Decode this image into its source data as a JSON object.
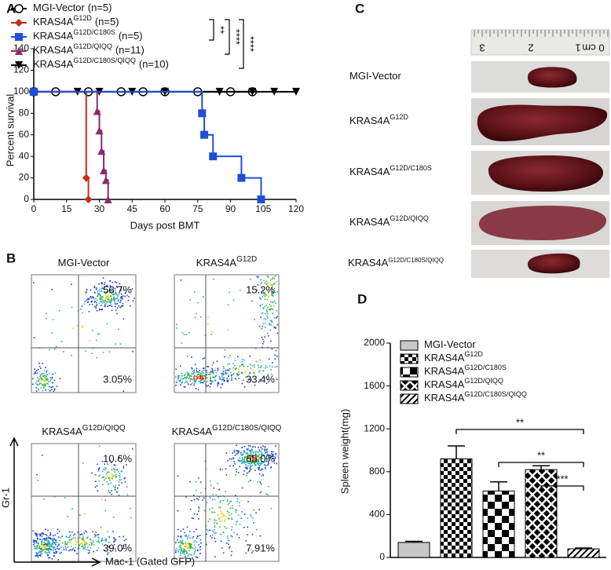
{
  "panel_letters": [
    "A",
    "B",
    "C",
    "D"
  ],
  "chart_data": [
    {
      "type": "survival",
      "xlabel": "Days post BMT",
      "ylabel": "Percent survival",
      "xlim": [
        0,
        120
      ],
      "xticks": [
        0,
        15,
        30,
        45,
        60,
        75,
        90,
        105,
        120
      ],
      "ylim": [
        0,
        140
      ],
      "yticks": [
        0,
        20,
        40,
        60,
        80,
        100,
        120,
        140
      ],
      "series": [
        {
          "name": "MGI-Vector",
          "suffix": "(n=5)",
          "color": "#000000",
          "marker": "circle-open",
          "x": [
            0,
            10,
            25,
            40,
            50,
            60,
            75,
            90,
            100
          ],
          "values": [
            100,
            100,
            100,
            100,
            100,
            100,
            100,
            100,
            100
          ]
        },
        {
          "name": "KRAS4A",
          "sup": "G12D",
          "suffix": "(n=5)",
          "color": "#cc2a1e",
          "marker": "diamond",
          "x": [
            0,
            24,
            25
          ],
          "values": [
            100,
            20,
            0
          ]
        },
        {
          "name": "KRAS4A",
          "sup": "G12D/C180S",
          "suffix": "(n=5)",
          "color": "#1f4fd6",
          "marker": "square",
          "x": [
            0,
            77,
            78,
            82,
            95,
            104
          ],
          "values": [
            100,
            80,
            60,
            40,
            20,
            0
          ]
        },
        {
          "name": "KRAS4A",
          "sup": "G12D/QIQQ",
          "suffix": "(n=11)",
          "color": "#8b2a6b",
          "marker": "triangle-up",
          "x": [
            0,
            29,
            30,
            31,
            32,
            33,
            34
          ],
          "values": [
            100,
            82,
            64,
            45,
            27,
            18,
            0
          ]
        },
        {
          "name": "KRAS4A",
          "sup": "G12D/C180S/QIQQ",
          "suffix": "(n=10)",
          "color": "#000000",
          "marker": "triangle-down",
          "x": [
            0,
            20,
            30,
            45,
            60,
            85,
            100,
            110,
            120
          ],
          "values": [
            100,
            100,
            100,
            100,
            100,
            100,
            100,
            100,
            100
          ]
        }
      ],
      "significance": [
        "**",
        "****",
        "****"
      ]
    },
    {
      "type": "bar",
      "ylabel": "Spleen weight(mg)",
      "categories": [
        null
      ],
      "ylim": [
        0,
        2000
      ],
      "yticks": [
        0,
        400,
        800,
        1200,
        1600,
        2000
      ],
      "series": [
        {
          "name": "MGI-Vector",
          "pattern": "solid",
          "color": "#c8c8c8",
          "values": [
            140
          ],
          "errors": [
            10
          ]
        },
        {
          "name": "KRAS4A",
          "sup": "G12D",
          "pattern": "checker-small",
          "color": "#000000",
          "values": [
            920
          ],
          "errors": [
            120
          ]
        },
        {
          "name": "KRAS4A",
          "sup": "G12D/C180S",
          "pattern": "checker-large",
          "color": "#000000",
          "values": [
            620
          ],
          "errors": [
            85
          ]
        },
        {
          "name": "KRAS4A",
          "sup": "G12D/QIQQ",
          "pattern": "crosshatch",
          "color": "#000000",
          "values": [
            820
          ],
          "errors": [
            35
          ]
        },
        {
          "name": "KRAS4A",
          "sup": "G12D/C180S/QIQQ",
          "pattern": "diagonal",
          "color": "#000000",
          "values": [
            80
          ],
          "errors": [
            8
          ]
        }
      ],
      "significance": [
        "**",
        "**",
        "***"
      ]
    }
  ],
  "flow": {
    "y_axis": "Gr-1",
    "x_axis": "Mac-1 (Gated GFP)",
    "plots": [
      {
        "name": "MGI-Vector",
        "upper_right": "56.7%",
        "lower_right": "3.05%"
      },
      {
        "name": "KRAS4A",
        "sup": "G12D",
        "upper_right": "15.2%",
        "lower_right": "33.4%"
      },
      {
        "name": "KRAS4A",
        "sup": "G12D/QIQQ",
        "upper_right": "10.6%",
        "lower_right": "39.0%"
      },
      {
        "name": "KRAS4A",
        "sup": "G12D/C180S/QIQQ",
        "upper_right": "65.0%",
        "lower_right": "7.91%"
      }
    ]
  },
  "spleen_photo": {
    "ruler": [
      "3",
      "2",
      "1",
      "cm",
      "0"
    ],
    "rows": [
      {
        "name": "MGI-Vector"
      },
      {
        "name": "KRAS4A",
        "sup": "G12D"
      },
      {
        "name": "KRAS4A",
        "sup": "G12D/C180S"
      },
      {
        "name": "KRAS4A",
        "sup": "G12D/QIQQ"
      },
      {
        "name": "KRAS4A",
        "sup": "G12D/C180S/QIQQ"
      }
    ]
  }
}
